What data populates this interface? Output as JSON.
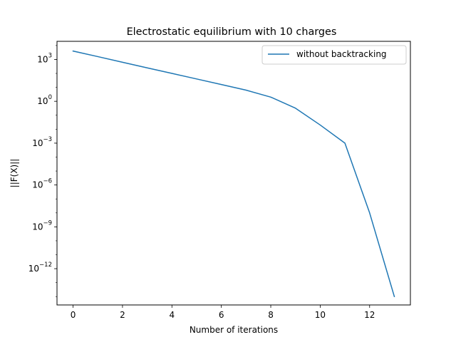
{
  "chart_data": {
    "type": "line",
    "title": "Electrostatic equilibrium with 10 charges",
    "xlabel": "Number of iterations",
    "ylabel": "||F(X)||",
    "yscale": "log",
    "xlim": [
      -0.65,
      13.65
    ],
    "ylim_exponent": [
      -14.6,
      4.3
    ],
    "x_ticks": [
      0,
      2,
      4,
      6,
      8,
      10,
      12
    ],
    "y_ticks": [
      {
        "base": "10",
        "exp": "3",
        "value": 1000
      },
      {
        "base": "10",
        "exp": "0",
        "value": 1
      },
      {
        "base": "10",
        "exp": "−3",
        "value": 0.001
      },
      {
        "base": "10",
        "exp": "−6",
        "value": 1e-06
      },
      {
        "base": "10",
        "exp": "−9",
        "value": 1e-09
      },
      {
        "base": "10",
        "exp": "−12",
        "value": 1e-12
      }
    ],
    "legend_position": "top-right",
    "series": [
      {
        "name": "without backtracking",
        "color": "#1f77b4",
        "x": [
          0,
          1,
          2,
          3,
          4,
          5,
          6,
          7,
          8,
          9,
          10,
          11,
          12,
          13
        ],
        "y": [
          4000,
          1600,
          630,
          250,
          100,
          40,
          16,
          6.3,
          2.0,
          0.32,
          0.02,
          0.001,
          1e-08,
          1e-14
        ]
      }
    ]
  }
}
